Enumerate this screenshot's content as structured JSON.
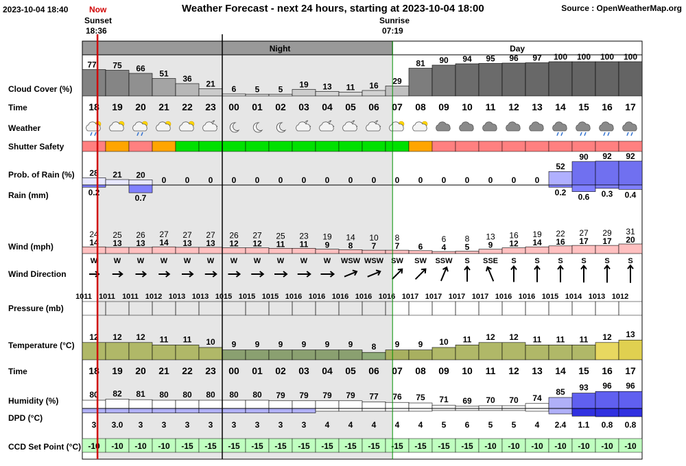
{
  "header": {
    "timestamp": "2023-10-04 18:40",
    "now_label": "Now",
    "title": "Weather Forecast - next 24 hours, starting at 2023-10-04 18:00",
    "source": "Source : OpenWeatherMap.org",
    "sunset_label": "Sunset",
    "sunset_time": "18:36",
    "sunrise_label": "Sunrise",
    "sunrise_time": "07:19"
  },
  "bands": {
    "night": "Night",
    "day": "Day"
  },
  "row_labels": {
    "cloud": "Cloud Cover (%)",
    "time": "Time",
    "weather": "Weather",
    "shutter": "Shutter Safety",
    "prob": "Prob. of Rain (%)",
    "rain": "Rain (mm)",
    "wind": "Wind (mph)",
    "wind_dir": "Wind Direction",
    "pressure": "Pressure (mb)",
    "temperature": "Temperature (°C)",
    "time2": "Time",
    "humidity": "Humidity (%)",
    "dpd": "DPD (°C)",
    "ccd": "CCD Set Point (°C)"
  },
  "colors": {
    "cloud_light": "#e0e0e0",
    "cloud_dark": "#6a6a6a",
    "shutter_ok": "#00e000",
    "shutter_warn": "#ffa500",
    "shutter_bad": "#ff8080",
    "rain": "#8080ff",
    "wind": "#ffc0c0",
    "ccd": "#c0ffc0",
    "now_line": "#d00000",
    "night_shade": "#e6e6e6"
  },
  "chart_data": {
    "type": "table",
    "hours": [
      "18",
      "19",
      "20",
      "21",
      "22",
      "23",
      "00",
      "01",
      "02",
      "03",
      "04",
      "05",
      "06",
      "07",
      "08",
      "09",
      "10",
      "11",
      "12",
      "13",
      "14",
      "15",
      "16",
      "17"
    ],
    "cloud_cover": [
      77,
      75,
      66,
      51,
      36,
      21,
      6,
      5,
      5,
      19,
      13,
      11,
      16,
      29,
      81,
      90,
      94,
      95,
      96,
      97,
      100,
      100,
      100,
      100
    ],
    "weather_icons": [
      "cloud-sun-rain-icon",
      "cloud-sun-icon",
      "cloud-sun-rain-icon",
      "cloud-sun-icon",
      "cloud-sun-icon",
      "cloud-moon-icon",
      "moon-icon",
      "moon-icon",
      "moon-icon",
      "cloud-moon-icon",
      "cloud-moon-icon",
      "cloud-moon-icon",
      "cloud-moon-icon",
      "cloud-sun-icon",
      "cloud-sun-icon",
      "cloud-icon",
      "cloud-icon",
      "cloud-icon",
      "cloud-icon",
      "cloud-icon",
      "cloud-rain-icon",
      "cloud-rain-icon",
      "cloud-rain-icon",
      "cloud-rain-icon"
    ],
    "shutter_safety": [
      "bad",
      "warn",
      "bad",
      "warn",
      "ok",
      "ok",
      "ok",
      "ok",
      "ok",
      "ok",
      "ok",
      "ok",
      "ok",
      "ok",
      "warn",
      "bad",
      "bad",
      "bad",
      "bad",
      "bad",
      "bad",
      "bad",
      "bad",
      "bad"
    ],
    "prob_rain": [
      28,
      21,
      20,
      0,
      0,
      0,
      0,
      0,
      0,
      0,
      0,
      0,
      0,
      0,
      0,
      0,
      0,
      0,
      0,
      0,
      52,
      90,
      92,
      92
    ],
    "rain_mm": [
      0.2,
      null,
      0.7,
      null,
      null,
      null,
      null,
      null,
      null,
      null,
      null,
      null,
      null,
      null,
      null,
      null,
      null,
      null,
      null,
      null,
      0.2,
      0.6,
      0.3,
      0.4
    ],
    "wind_gust": [
      24,
      25,
      26,
      27,
      27,
      27,
      26,
      27,
      25,
      23,
      19,
      14,
      10,
      8,
      null,
      6,
      8,
      13,
      16,
      19,
      22,
      27,
      29,
      31
    ],
    "wind_speed": [
      14,
      13,
      13,
      14,
      13,
      13,
      12,
      12,
      11,
      11,
      9,
      8,
      7,
      7,
      6,
      4,
      5,
      9,
      12,
      14,
      16,
      17,
      17,
      20
    ],
    "wind_direction": [
      "W",
      "W",
      "W",
      "W",
      "W",
      "W",
      "W",
      "W",
      "W",
      "W",
      "W",
      "WSW",
      "WSW",
      "SW",
      "SW",
      "SSW",
      "S",
      "SSE",
      "S",
      "S",
      "S",
      "S",
      "S",
      "S"
    ],
    "pressure": [
      1011,
      1011,
      1011,
      1012,
      1013,
      1013,
      1015,
      1015,
      1015,
      1016,
      1016,
      1016,
      1016,
      1016,
      1017,
      1017,
      1017,
      1017,
      1016,
      1016,
      1015,
      1014,
      1013,
      1012
    ],
    "temperature": [
      12,
      12,
      12,
      11,
      11,
      10,
      9,
      9,
      9,
      9,
      9,
      9,
      8,
      9,
      9,
      10,
      11,
      12,
      12,
      11,
      11,
      11,
      12,
      13
    ],
    "humidity": [
      80,
      82,
      81,
      80,
      80,
      80,
      80,
      80,
      79,
      79,
      79,
      79,
      77,
      76,
      75,
      71,
      69,
      70,
      70,
      74,
      85,
      93,
      96,
      96
    ],
    "dpd": [
      "3",
      "3.0",
      "3",
      "3",
      "3",
      "3",
      "3",
      "3",
      "3",
      "3",
      "4",
      "4",
      "4",
      "4",
      "4",
      "5",
      "6",
      "5",
      "5",
      "4",
      "2.4",
      "1.1",
      "0.8",
      "0.8"
    ],
    "ccd_set_point": [
      -10,
      -10,
      -10,
      -10,
      -15,
      -15,
      -15,
      -15,
      -15,
      -15,
      -15,
      -15,
      -15,
      -15,
      -15,
      -15,
      -15,
      -10,
      -10,
      -10,
      -10,
      -10,
      -10,
      -10
    ]
  }
}
